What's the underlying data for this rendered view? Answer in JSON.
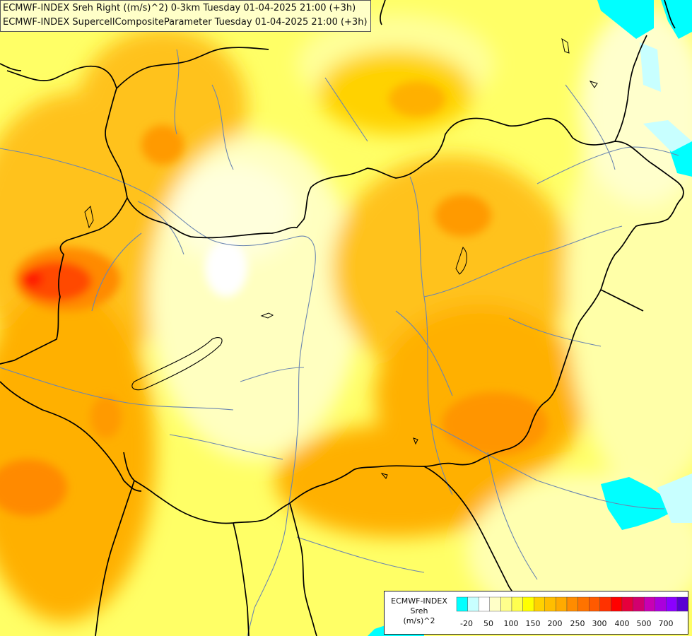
{
  "header": {
    "line1": "ECMWF-INDEX Sreh Right ((m/s)^2) 0-3km Tuesday 01-04-2025 21:00 (+3h)",
    "line2": "ECMWF-INDEX SupercellCompositeParameter Tuesday 01-04-2025 21:00 (+3h)"
  },
  "legend": {
    "model": "ECMWF-INDEX",
    "param": "Sreh",
    "unit": "(m/s)^2",
    "colors": [
      "#00ffff",
      "#c8ffff",
      "#ffffff",
      "#ffffc8",
      "#ffff8c",
      "#ffff50",
      "#ffff00",
      "#ffd200",
      "#ffbe00",
      "#ffaa00",
      "#ff8c00",
      "#ff7300",
      "#ff5a00",
      "#ff3200",
      "#ff0000",
      "#e6003c",
      "#d2006e",
      "#c800b4",
      "#aa00dc",
      "#8c00ff",
      "#5a00d2",
      "#3200b4",
      "#0a0082"
    ],
    "labels": [
      "-20",
      "50",
      "100",
      "150",
      "200",
      "250",
      "300",
      "400",
      "500",
      "700"
    ]
  },
  "colors": {
    "header_bg": "#ffffc8",
    "border": "#000000",
    "river": "#6b86b0"
  }
}
